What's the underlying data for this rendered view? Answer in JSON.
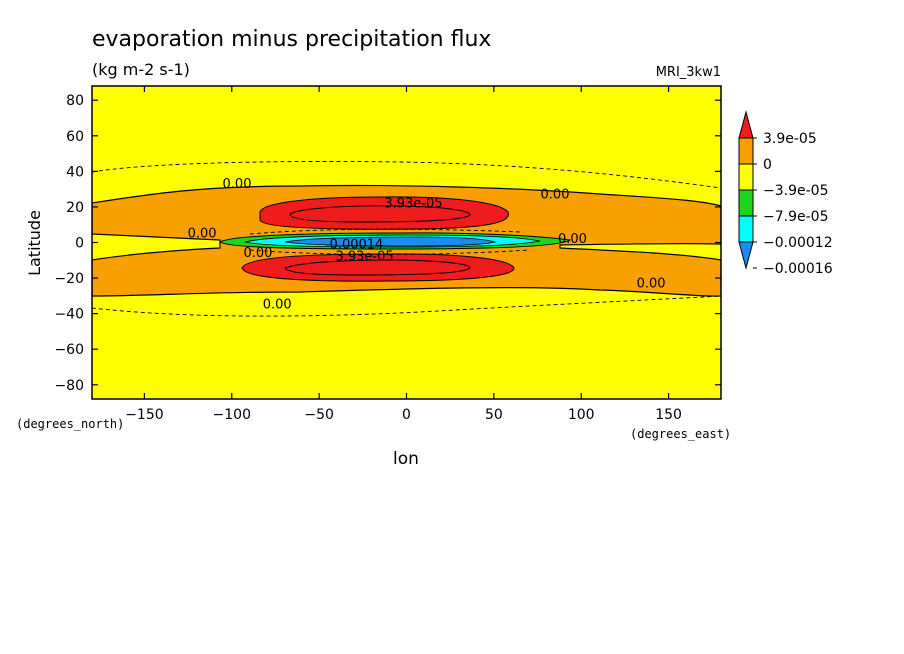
{
  "chart_data": {
    "type": "contour",
    "title": "evaporation minus precipitation flux",
    "units": "(kg m-2 s-1)",
    "model": "MRI_3kw1",
    "xlabel": "lon",
    "ylabel": "Latitude",
    "x_unit_label": "(degrees_east)",
    "y_unit_label": "(degrees_north)",
    "xlim": [
      -180,
      180
    ],
    "ylim": [
      -88,
      88
    ],
    "x_ticks": [
      -150,
      -100,
      -50,
      0,
      50,
      100,
      150
    ],
    "y_ticks": [
      80,
      60,
      40,
      20,
      0,
      -20,
      -40,
      -60,
      -80
    ],
    "x_tick_labels": [
      "−150",
      "−100",
      "−50",
      "0",
      "50",
      "100",
      "150"
    ],
    "y_tick_labels": [
      "80",
      "60",
      "40",
      "20",
      "0",
      "−20",
      "−40",
      "−60",
      "−80"
    ],
    "colorbar": {
      "labels": [
        "3.9e-05",
        "0",
        "−3.9e-05",
        "−7.9e-05",
        "−0.00012",
        "−0.00016"
      ],
      "levels": [
        3.9e-05,
        0,
        -3.9e-05,
        -7.9e-05,
        -0.00012,
        -0.00016
      ],
      "colors": [
        "#ee1c1c",
        "#f7a000",
        "#ffff00",
        "#1cd61c",
        "#00ffff",
        "#1c8cf0"
      ]
    },
    "contour_labels": [
      {
        "text": "0.00",
        "lon": -97,
        "lat": 33
      },
      {
        "text": "0.00",
        "lon": 85,
        "lat": 27
      },
      {
        "text": "0.00",
        "lon": -117,
        "lat": 5
      },
      {
        "text": "0.00",
        "lon": 95,
        "lat": 2
      },
      {
        "text": "0.00",
        "lon": 140,
        "lat": -23
      },
      {
        "text": "0.00",
        "lon": -74,
        "lat": -35
      },
      {
        "text": "3.93e-05",
        "lon": 4,
        "lat": 22
      },
      {
        "text": "3.93e-05",
        "lon": -24,
        "lat": -8
      },
      {
        "text": "-0.00014",
        "lon": -30,
        "lat": -1
      },
      {
        "text": "0.00",
        "lon": -85,
        "lat": -6
      }
    ]
  }
}
